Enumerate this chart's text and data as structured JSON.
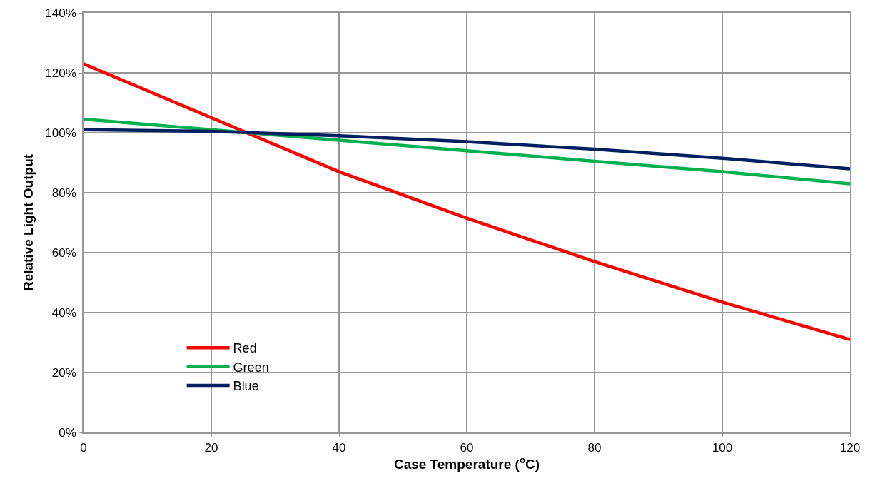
{
  "chart_data": {
    "type": "line",
    "xlabel": "Case Temperature ($^{o}$C)",
    "ylabel": "Relative Light Output",
    "x": [
      0,
      20,
      40,
      60,
      80,
      100,
      120
    ],
    "series": [
      {
        "name": "Red",
        "color": "#ff0000",
        "values": [
          123,
          105,
          87,
          71.5,
          57,
          43.5,
          31
        ]
      },
      {
        "name": "Green",
        "color": "#00b050",
        "values": [
          104.5,
          101,
          97.5,
          94,
          90.5,
          87,
          83
        ]
      },
      {
        "name": "Blue",
        "color": "#002060",
        "values": [
          101,
          100.5,
          99,
          97,
          94.5,
          91.5,
          88
        ]
      }
    ],
    "xlim": [
      0,
      120
    ],
    "xticks": [
      0,
      20,
      40,
      60,
      80,
      100,
      120
    ],
    "ylim": [
      0,
      140
    ],
    "yticks": [
      {
        "value": 0,
        "label": "0%"
      },
      {
        "value": 20,
        "label": "20%"
      },
      {
        "value": 40,
        "label": "40%"
      },
      {
        "value": 60,
        "label": "60%"
      },
      {
        "value": 80,
        "label": "80%"
      },
      {
        "value": 100,
        "label": "100%"
      },
      {
        "value": 120,
        "label": "120%"
      },
      {
        "value": 140,
        "label": "140%"
      }
    ],
    "grid": true,
    "legend": "bottom left",
    "marker": "none",
    "line_style": "solid"
  }
}
